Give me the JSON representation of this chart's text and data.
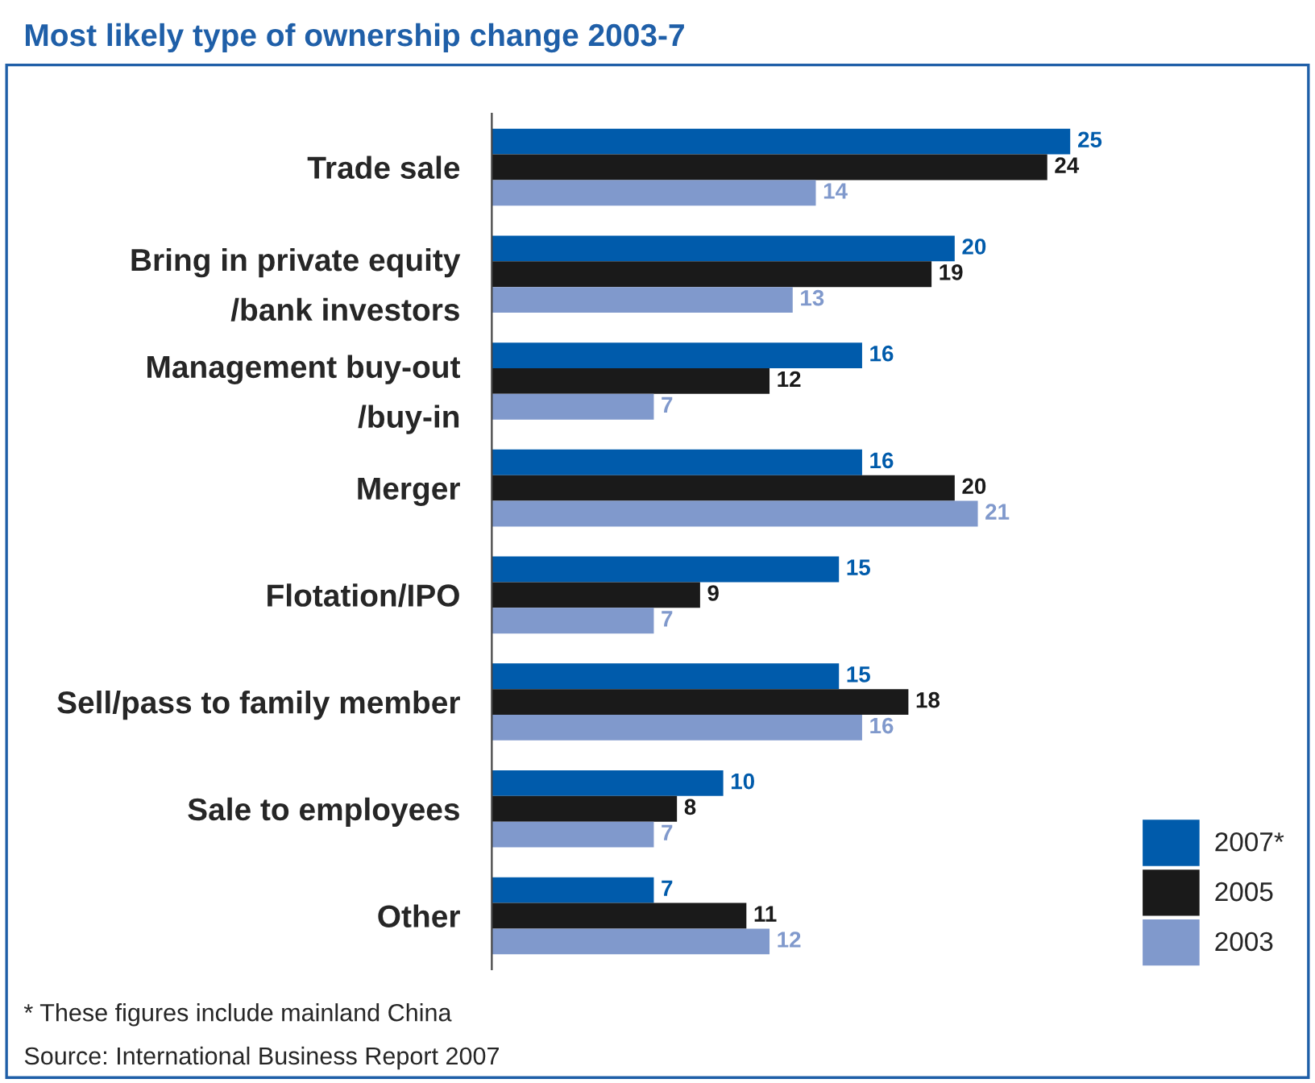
{
  "chart_data": {
    "type": "bar",
    "orientation": "horizontal",
    "title": "Most likely type of ownership change 2003-7",
    "categories": [
      "Trade sale",
      "Bring in private equity\n/bank investors",
      "Management buy-out\n/buy-in",
      "Merger",
      "Flotation/IPO",
      "Sell/pass to family member",
      "Sale to employees",
      "Other"
    ],
    "series": [
      {
        "name": "2007*",
        "color": "#005bab",
        "values": [
          25,
          20,
          16,
          16,
          15,
          15,
          10,
          7
        ]
      },
      {
        "name": "2005",
        "color": "#1a1a1a",
        "values": [
          24,
          19,
          12,
          20,
          9,
          18,
          8,
          11
        ]
      },
      {
        "name": "2003",
        "color": "#8099cc",
        "values": [
          14,
          13,
          7,
          21,
          7,
          16,
          7,
          12
        ]
      }
    ],
    "data_labels": true,
    "legend": "bottom right",
    "grid": false,
    "annotations": [
      "* These figures include mainland China",
      "Source: International Business Report 2007"
    ]
  }
}
